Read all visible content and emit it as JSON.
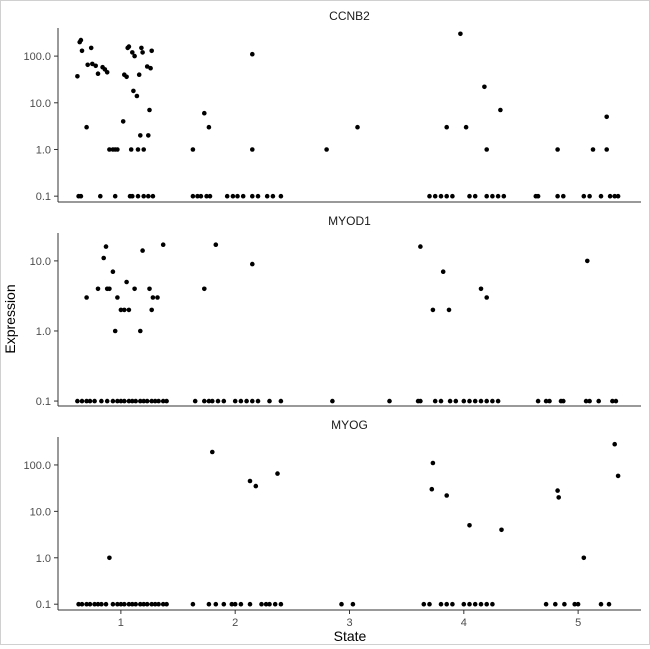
{
  "chart_data": {
    "type": "scatter",
    "xlabel": "State",
    "ylabel": "Expression",
    "x_ticks": [
      1,
      2,
      3,
      4,
      5
    ],
    "xlim": [
      0.45,
      5.55
    ],
    "y_scale": "log10",
    "grid": false,
    "legend": "none",
    "point_color": "#000000",
    "panels": [
      {
        "title": "CCNB2",
        "ylim": [
          0.075,
          400
        ],
        "y_ticks": [
          0.1,
          1.0,
          10.0,
          100.0
        ],
        "y_tick_labels": [
          "0.1",
          "1.0",
          "10.0",
          "100.0"
        ],
        "points": [
          [
            0.62,
            37
          ],
          [
            0.64,
            200
          ],
          [
            0.65,
            220
          ],
          [
            0.66,
            130
          ],
          [
            0.7,
            3
          ],
          [
            0.71,
            65
          ],
          [
            0.74,
            150
          ],
          [
            0.75,
            68
          ],
          [
            0.78,
            62
          ],
          [
            0.8,
            42
          ],
          [
            0.84,
            58
          ],
          [
            0.86,
            52
          ],
          [
            0.88,
            45
          ],
          [
            0.9,
            1
          ],
          [
            0.93,
            1
          ],
          [
            0.95,
            1
          ],
          [
            0.97,
            1
          ],
          [
            1.02,
            4
          ],
          [
            1.03,
            40
          ],
          [
            1.05,
            36
          ],
          [
            1.06,
            150
          ],
          [
            1.07,
            160
          ],
          [
            1.09,
            1
          ],
          [
            1.1,
            120
          ],
          [
            1.11,
            18
          ],
          [
            1.12,
            100
          ],
          [
            1.14,
            14
          ],
          [
            1.15,
            1
          ],
          [
            1.16,
            40
          ],
          [
            1.17,
            2
          ],
          [
            1.18,
            150
          ],
          [
            1.19,
            120
          ],
          [
            1.2,
            1
          ],
          [
            1.23,
            60
          ],
          [
            1.24,
            2
          ],
          [
            1.25,
            7
          ],
          [
            1.26,
            55
          ],
          [
            1.27,
            130
          ],
          [
            0.63,
            0.1
          ],
          [
            0.65,
            0.1
          ],
          [
            0.82,
            0.1
          ],
          [
            0.95,
            0.1
          ],
          [
            1.08,
            0.1
          ],
          [
            1.1,
            0.1
          ],
          [
            1.15,
            0.1
          ],
          [
            1.2,
            0.1
          ],
          [
            1.24,
            0.1
          ],
          [
            1.28,
            0.1
          ],
          [
            1.73,
            6
          ],
          [
            1.77,
            3
          ],
          [
            1.63,
            1
          ],
          [
            2.15,
            110
          ],
          [
            2.15,
            1
          ],
          [
            1.63,
            0.1
          ],
          [
            1.67,
            0.1
          ],
          [
            1.7,
            0.1
          ],
          [
            1.75,
            0.1
          ],
          [
            1.78,
            0.1
          ],
          [
            1.93,
            0.1
          ],
          [
            1.98,
            0.1
          ],
          [
            2.02,
            0.1
          ],
          [
            2.07,
            0.1
          ],
          [
            2.15,
            0.1
          ],
          [
            2.2,
            0.1
          ],
          [
            2.28,
            0.1
          ],
          [
            2.33,
            0.1
          ],
          [
            2.4,
            0.1
          ],
          [
            2.8,
            1
          ],
          [
            3.07,
            3
          ],
          [
            3.97,
            300
          ],
          [
            4.18,
            22
          ],
          [
            4.32,
            7
          ],
          [
            3.85,
            3
          ],
          [
            4.02,
            3
          ],
          [
            4.2,
            1
          ],
          [
            3.7,
            0.1
          ],
          [
            3.75,
            0.1
          ],
          [
            3.8,
            0.1
          ],
          [
            3.85,
            0.1
          ],
          [
            3.9,
            0.1
          ],
          [
            4.05,
            0.1
          ],
          [
            4.1,
            0.1
          ],
          [
            4.2,
            0.1
          ],
          [
            4.25,
            0.1
          ],
          [
            4.3,
            0.1
          ],
          [
            4.35,
            0.1
          ],
          [
            5.25,
            5
          ],
          [
            4.82,
            1
          ],
          [
            5.13,
            1
          ],
          [
            5.25,
            1
          ],
          [
            4.63,
            0.1
          ],
          [
            4.65,
            0.1
          ],
          [
            4.82,
            0.1
          ],
          [
            4.87,
            0.1
          ],
          [
            5.05,
            0.1
          ],
          [
            5.1,
            0.1
          ],
          [
            5.2,
            0.1
          ],
          [
            5.28,
            0.1
          ],
          [
            5.32,
            0.1
          ],
          [
            5.35,
            0.1
          ]
        ]
      },
      {
        "title": "MYOD1",
        "ylim": [
          0.085,
          25
        ],
        "y_ticks": [
          0.1,
          1.0,
          10.0
        ],
        "y_tick_labels": [
          "0.1",
          "1.0",
          "10.0"
        ],
        "points": [
          [
            0.7,
            3
          ],
          [
            0.8,
            4
          ],
          [
            0.85,
            11
          ],
          [
            0.87,
            16
          ],
          [
            0.88,
            4
          ],
          [
            0.9,
            4
          ],
          [
            0.93,
            7
          ],
          [
            0.95,
            1
          ],
          [
            0.97,
            3
          ],
          [
            1.0,
            2
          ],
          [
            1.03,
            2
          ],
          [
            1.05,
            5
          ],
          [
            1.07,
            2
          ],
          [
            1.12,
            4
          ],
          [
            1.17,
            1
          ],
          [
            1.19,
            14
          ],
          [
            1.25,
            4
          ],
          [
            1.27,
            2
          ],
          [
            1.28,
            3
          ],
          [
            1.32,
            3
          ],
          [
            1.37,
            17
          ],
          [
            0.62,
            0.1
          ],
          [
            0.66,
            0.1
          ],
          [
            0.7,
            0.1
          ],
          [
            0.73,
            0.1
          ],
          [
            0.77,
            0.1
          ],
          [
            0.83,
            0.1
          ],
          [
            0.88,
            0.1
          ],
          [
            0.93,
            0.1
          ],
          [
            0.97,
            0.1
          ],
          [
            1.0,
            0.1
          ],
          [
            1.03,
            0.1
          ],
          [
            1.07,
            0.1
          ],
          [
            1.1,
            0.1
          ],
          [
            1.13,
            0.1
          ],
          [
            1.17,
            0.1
          ],
          [
            1.2,
            0.1
          ],
          [
            1.23,
            0.1
          ],
          [
            1.27,
            0.1
          ],
          [
            1.3,
            0.1
          ],
          [
            1.33,
            0.1
          ],
          [
            1.37,
            0.1
          ],
          [
            1.4,
            0.1
          ],
          [
            1.73,
            4
          ],
          [
            1.83,
            17
          ],
          [
            2.15,
            9
          ],
          [
            1.65,
            0.1
          ],
          [
            1.73,
            0.1
          ],
          [
            1.77,
            0.1
          ],
          [
            1.8,
            0.1
          ],
          [
            1.85,
            0.1
          ],
          [
            1.9,
            0.1
          ],
          [
            2.0,
            0.1
          ],
          [
            2.05,
            0.1
          ],
          [
            2.1,
            0.1
          ],
          [
            2.15,
            0.1
          ],
          [
            2.2,
            0.1
          ],
          [
            2.3,
            0.1
          ],
          [
            2.4,
            0.1
          ],
          [
            2.85,
            0.1
          ],
          [
            3.35,
            0.1
          ],
          [
            3.62,
            16
          ],
          [
            3.73,
            2
          ],
          [
            3.82,
            7
          ],
          [
            3.87,
            2
          ],
          [
            4.15,
            4
          ],
          [
            4.2,
            3
          ],
          [
            3.6,
            0.1
          ],
          [
            3.62,
            0.1
          ],
          [
            3.75,
            0.1
          ],
          [
            3.8,
            0.1
          ],
          [
            3.88,
            0.1
          ],
          [
            3.93,
            0.1
          ],
          [
            4.0,
            0.1
          ],
          [
            4.05,
            0.1
          ],
          [
            4.1,
            0.1
          ],
          [
            4.15,
            0.1
          ],
          [
            4.2,
            0.1
          ],
          [
            4.25,
            0.1
          ],
          [
            4.3,
            0.1
          ],
          [
            5.08,
            10
          ],
          [
            4.65,
            0.1
          ],
          [
            4.72,
            0.1
          ],
          [
            4.75,
            0.1
          ],
          [
            4.85,
            0.1
          ],
          [
            4.87,
            0.1
          ],
          [
            5.07,
            0.1
          ],
          [
            5.1,
            0.1
          ],
          [
            5.18,
            0.1
          ],
          [
            5.3,
            0.1
          ],
          [
            5.33,
            0.1
          ]
        ]
      },
      {
        "title": "MYOG",
        "ylim": [
          0.075,
          400
        ],
        "y_ticks": [
          0.1,
          1.0,
          10.0,
          100.0
        ],
        "y_tick_labels": [
          "0.1",
          "1.0",
          "10.0",
          "100.0"
        ],
        "points": [
          [
            0.9,
            1
          ],
          [
            0.63,
            0.1
          ],
          [
            0.66,
            0.1
          ],
          [
            0.7,
            0.1
          ],
          [
            0.73,
            0.1
          ],
          [
            0.77,
            0.1
          ],
          [
            0.8,
            0.1
          ],
          [
            0.83,
            0.1
          ],
          [
            0.87,
            0.1
          ],
          [
            0.93,
            0.1
          ],
          [
            0.97,
            0.1
          ],
          [
            1.0,
            0.1
          ],
          [
            1.03,
            0.1
          ],
          [
            1.07,
            0.1
          ],
          [
            1.1,
            0.1
          ],
          [
            1.13,
            0.1
          ],
          [
            1.17,
            0.1
          ],
          [
            1.2,
            0.1
          ],
          [
            1.23,
            0.1
          ],
          [
            1.27,
            0.1
          ],
          [
            1.3,
            0.1
          ],
          [
            1.33,
            0.1
          ],
          [
            1.37,
            0.1
          ],
          [
            1.4,
            0.1
          ],
          [
            1.8,
            190
          ],
          [
            2.13,
            45
          ],
          [
            2.18,
            35
          ],
          [
            2.37,
            65
          ],
          [
            1.63,
            0.1
          ],
          [
            1.77,
            0.1
          ],
          [
            1.83,
            0.1
          ],
          [
            1.9,
            0.1
          ],
          [
            1.97,
            0.1
          ],
          [
            2.0,
            0.1
          ],
          [
            2.05,
            0.1
          ],
          [
            2.13,
            0.1
          ],
          [
            2.23,
            0.1
          ],
          [
            2.27,
            0.1
          ],
          [
            2.3,
            0.1
          ],
          [
            2.35,
            0.1
          ],
          [
            2.4,
            0.1
          ],
          [
            2.93,
            0.1
          ],
          [
            3.03,
            0.1
          ],
          [
            3.73,
            110
          ],
          [
            3.72,
            30
          ],
          [
            3.85,
            22
          ],
          [
            4.05,
            5
          ],
          [
            4.33,
            4
          ],
          [
            3.65,
            0.1
          ],
          [
            3.7,
            0.1
          ],
          [
            3.8,
            0.1
          ],
          [
            3.85,
            0.1
          ],
          [
            3.9,
            0.1
          ],
          [
            4.0,
            0.1
          ],
          [
            4.05,
            0.1
          ],
          [
            4.1,
            0.1
          ],
          [
            4.15,
            0.1
          ],
          [
            4.2,
            0.1
          ],
          [
            4.25,
            0.1
          ],
          [
            4.82,
            28
          ],
          [
            4.83,
            20
          ],
          [
            5.05,
            1
          ],
          [
            5.32,
            280
          ],
          [
            5.35,
            58
          ],
          [
            4.72,
            0.1
          ],
          [
            4.8,
            0.1
          ],
          [
            4.88,
            0.1
          ],
          [
            4.97,
            0.1
          ],
          [
            5.0,
            0.1
          ],
          [
            5.2,
            0.1
          ],
          [
            5.27,
            0.1
          ]
        ]
      }
    ]
  }
}
